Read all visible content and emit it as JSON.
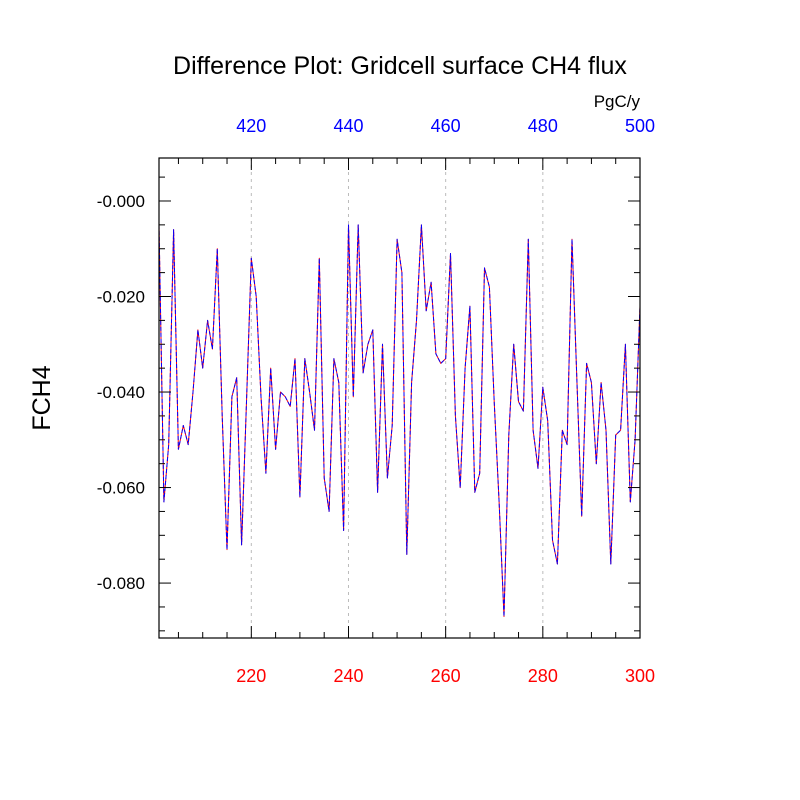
{
  "chart_data": {
    "type": "line",
    "title": "Difference Plot: Gridcell surface CH4 flux",
    "units": "PgC/y",
    "ylabel": "FCH4",
    "xlabel": "",
    "grid": "vertical dashed at labeled x ticks",
    "colors": {
      "bottom_axis": "#ff0000",
      "top_axis": "#0000ff",
      "series_a": "#ff0000",
      "series_b": "#0000ff",
      "axis": "#000000",
      "grid": "#bbbbbb"
    },
    "xlim": [
      201,
      300
    ],
    "top_xlim": [
      401,
      500
    ],
    "ylim": [
      -0.0915,
      0.009
    ],
    "x_ticks": [
      220,
      240,
      260,
      280,
      300
    ],
    "x_tick_labels": [
      "220",
      "240",
      "260",
      "280",
      "300"
    ],
    "top_x_ticks": [
      420,
      440,
      460,
      480,
      500
    ],
    "top_x_tick_labels": [
      "420",
      "440",
      "460",
      "480",
      "500"
    ],
    "y_ticks": [
      0,
      -0.02,
      -0.04,
      -0.06,
      -0.08
    ],
    "y_tick_labels": [
      "-0.000",
      "-0.020",
      "-0.040",
      "-0.060",
      "-0.080"
    ],
    "x": [
      201,
      202,
      203,
      204,
      205,
      206,
      207,
      208,
      209,
      210,
      211,
      212,
      213,
      214,
      215,
      216,
      217,
      218,
      219,
      220,
      221,
      222,
      223,
      224,
      225,
      226,
      227,
      228,
      229,
      230,
      231,
      232,
      233,
      234,
      235,
      236,
      237,
      238,
      239,
      240,
      241,
      242,
      243,
      244,
      245,
      246,
      247,
      248,
      249,
      250,
      251,
      252,
      253,
      254,
      255,
      256,
      257,
      258,
      259,
      260,
      261,
      262,
      263,
      264,
      265,
      266,
      267,
      268,
      269,
      270,
      271,
      272,
      273,
      274,
      275,
      276,
      277,
      278,
      279,
      280,
      281,
      282,
      283,
      284,
      285,
      286,
      287,
      288,
      289,
      290,
      291,
      292,
      293,
      294,
      295,
      296,
      297,
      298,
      299,
      300
    ],
    "series": [
      {
        "name": "",
        "values": [
          -0.005,
          -0.063,
          -0.051,
          -0.006,
          -0.052,
          -0.047,
          -0.051,
          -0.04,
          -0.027,
          -0.035,
          -0.025,
          -0.031,
          -0.01,
          -0.045,
          -0.073,
          -0.041,
          -0.037,
          -0.072,
          -0.042,
          -0.012,
          -0.02,
          -0.041,
          -0.057,
          -0.035,
          -0.052,
          -0.04,
          -0.041,
          -0.043,
          -0.033,
          -0.062,
          -0.033,
          -0.04,
          -0.048,
          -0.012,
          -0.058,
          -0.065,
          -0.033,
          -0.038,
          -0.069,
          -0.005,
          -0.041,
          -0.005,
          -0.036,
          -0.03,
          -0.027,
          -0.061,
          -0.03,
          -0.058,
          -0.047,
          -0.008,
          -0.015,
          -0.074,
          -0.038,
          -0.025,
          -0.005,
          -0.023,
          -0.017,
          -0.032,
          -0.034,
          -0.033,
          -0.011,
          -0.045,
          -0.06,
          -0.035,
          -0.022,
          -0.061,
          -0.057,
          -0.014,
          -0.018,
          -0.042,
          -0.063,
          -0.087,
          -0.049,
          -0.03,
          -0.042,
          -0.044,
          -0.008,
          -0.048,
          -0.056,
          -0.039,
          -0.046,
          -0.071,
          -0.076,
          -0.048,
          -0.051,
          -0.008,
          -0.037,
          -0.066,
          -0.034,
          -0.038,
          -0.055,
          -0.038,
          -0.048,
          -0.076,
          -0.049,
          -0.048,
          -0.03,
          -0.063,
          -0.05,
          -0.022
        ]
      }
    ]
  }
}
